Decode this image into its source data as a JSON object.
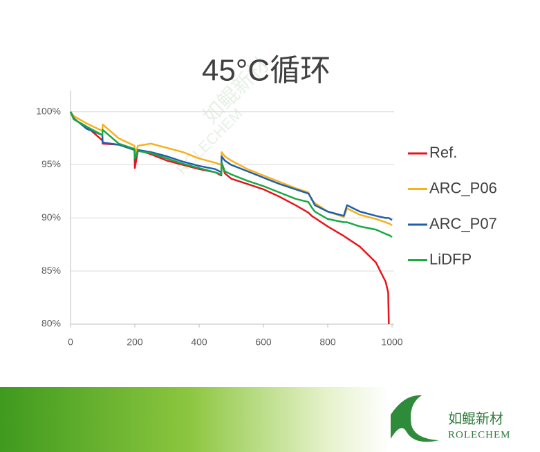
{
  "chart_data": {
    "type": "line",
    "title": "45°C循环",
    "x": [
      0,
      10,
      50,
      99,
      100,
      150,
      199,
      200,
      210,
      250,
      300,
      350,
      400,
      450,
      469,
      470,
      480,
      500,
      550,
      600,
      650,
      700,
      740,
      750,
      760,
      800,
      850,
      860,
      900,
      950,
      980,
      988,
      990,
      1000
    ],
    "series": [
      {
        "name": "Ref.",
        "color": "#e8141c",
        "values": [
          100,
          99.3,
          98.6,
          97.3,
          97.0,
          96.9,
          96.5,
          94.7,
          96.4,
          96.0,
          95.4,
          95.0,
          94.6,
          94.3,
          94.0,
          95.2,
          94.2,
          93.7,
          93.2,
          92.7,
          92.0,
          91.2,
          90.5,
          90.2,
          90.0,
          89.2,
          88.3,
          88.1,
          87.3,
          85.8,
          84.0,
          83.0,
          80.0,
          null
        ]
      },
      {
        "name": "ARC_P06",
        "color": "#f5b21a",
        "values": [
          100,
          99.6,
          98.9,
          98.2,
          98.8,
          97.5,
          96.8,
          96.0,
          96.8,
          97.0,
          96.6,
          96.2,
          95.6,
          95.2,
          95.0,
          96.2,
          95.8,
          95.4,
          94.6,
          94.0,
          93.4,
          92.8,
          92.4,
          91.7,
          91.4,
          90.6,
          90.1,
          90.9,
          90.3,
          89.9,
          89.6,
          89.5,
          89.5,
          89.3
        ]
      },
      {
        "name": "ARC_P07",
        "color": "#1f5fae",
        "values": [
          100,
          99.4,
          98.4,
          97.8,
          97.1,
          96.9,
          96.4,
          95.5,
          96.4,
          96.2,
          95.8,
          95.3,
          94.9,
          94.6,
          94.3,
          95.8,
          95.4,
          95.0,
          94.4,
          93.8,
          93.2,
          92.7,
          92.3,
          91.8,
          91.2,
          90.6,
          90.2,
          91.2,
          90.6,
          90.2,
          90.0,
          90.0,
          90.0,
          89.8
        ]
      },
      {
        "name": "LiDFP",
        "color": "#1aa845",
        "values": [
          100,
          99.3,
          98.6,
          97.8,
          98.3,
          97.0,
          96.5,
          95.6,
          96.3,
          96.1,
          95.6,
          95.1,
          94.7,
          94.3,
          94.1,
          95.2,
          94.4,
          94.1,
          93.5,
          93.0,
          92.4,
          91.8,
          91.5,
          91.0,
          90.6,
          89.9,
          89.6,
          89.6,
          89.2,
          88.9,
          88.5,
          88.4,
          88.4,
          88.2
        ]
      }
    ],
    "xlim": [
      0,
      1000
    ],
    "xticks": [
      0,
      200,
      400,
      600,
      800,
      1000
    ],
    "ylim": [
      80,
      102
    ],
    "yticks": [
      {
        "value": 80,
        "label": "80%"
      },
      {
        "value": 85,
        "label": "85%"
      },
      {
        "value": 90,
        "label": "90%"
      },
      {
        "value": 95,
        "label": "95%"
      },
      {
        "value": 100,
        "label": "100%"
      }
    ],
    "grid": true,
    "legend": "right"
  },
  "watermark": {
    "cn": "如鲲新材",
    "en": "ROLECHEM"
  },
  "footer": {
    "brand_cn": "如鲲新材",
    "brand_en": "ROLECHEM"
  }
}
